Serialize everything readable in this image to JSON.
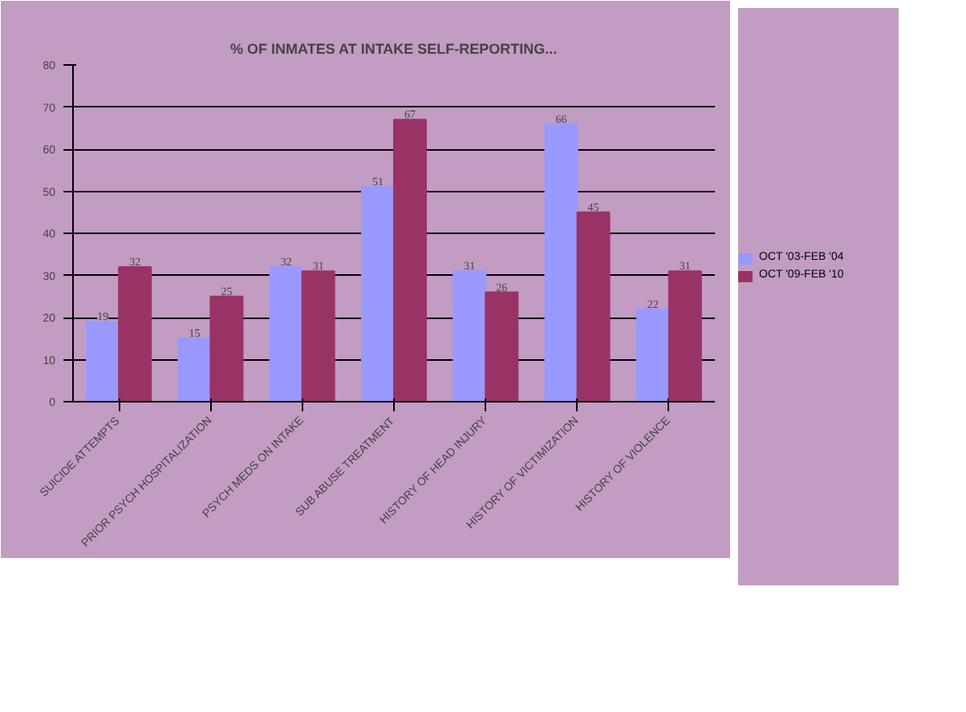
{
  "chart_data": {
    "type": "bar",
    "title": "% OF INMATES AT INTAKE SELF-REPORTING...",
    "categories": [
      "SUICIDE ATTEMPTS",
      "PRIOR PSYCH HOSPITALIZATION",
      "PSYCH MEDS ON INTAKE",
      "SUB ABUSE TREATMENT",
      "HISTORY OF HEAD INJURY",
      "HISTORY OF VICTIMIZATION",
      "HISTORY OF VIOLENCE"
    ],
    "series": [
      {
        "name": "OCT '03-FEB '04",
        "color": "#9999ff",
        "values": [
          19,
          15,
          32,
          51,
          31,
          66,
          22
        ]
      },
      {
        "name": "OCT '09-FEB '10",
        "color": "#993366",
        "values": [
          32,
          25,
          31,
          67,
          26,
          45,
          31
        ]
      }
    ],
    "ylim": [
      0,
      80
    ],
    "yticks": [
      0,
      10,
      20,
      30,
      40,
      50,
      60,
      70,
      80
    ],
    "grid": "y",
    "legend": "right",
    "data_labels": true
  }
}
